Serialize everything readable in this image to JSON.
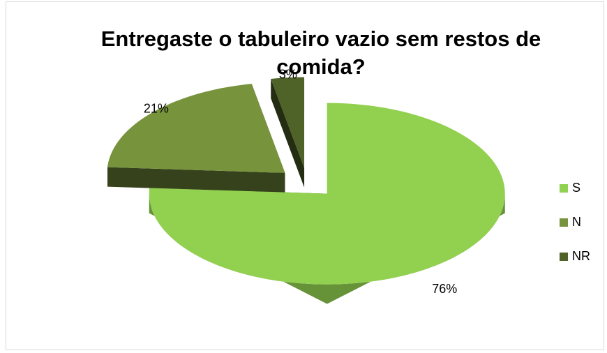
{
  "chart_data": {
    "type": "pie",
    "title": "Entregaste o tabuleiro vazio sem restos de comida?",
    "categories": [
      "S",
      "N",
      "NR"
    ],
    "values": [
      76,
      21,
      3
    ],
    "value_labels": [
      "76%",
      "21%",
      "3%"
    ],
    "colors": [
      "#92d050",
      "#77933c",
      "#4f6228"
    ],
    "legend": "right"
  }
}
